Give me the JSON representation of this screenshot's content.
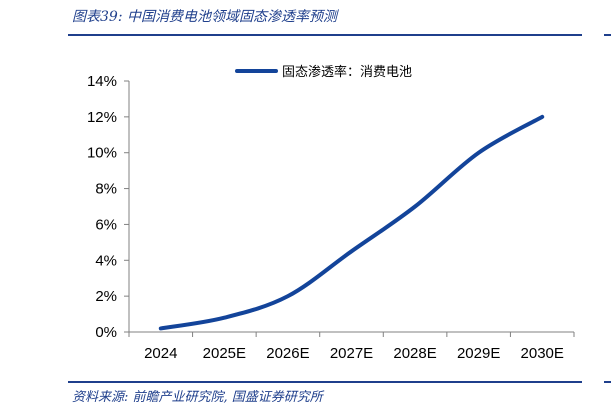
{
  "header": {
    "figure_title": "图表39:  中国消费电池领域固态渗透率预测"
  },
  "footer": {
    "source": "资料来源:  前瞻产业研究院,  国盛证券研究所"
  },
  "colors": {
    "accent": "#1f3f8c",
    "series_line": "#13449a",
    "axis": "#808080"
  },
  "chart_data": {
    "type": "line",
    "title": "",
    "xlabel": "",
    "ylabel": "",
    "categories": [
      "2024",
      "2025E",
      "2026E",
      "2027E",
      "2028E",
      "2029E",
      "2030E"
    ],
    "series": [
      {
        "name": "固态渗透率：消费电池",
        "values": [
          0.2,
          0.8,
          2.0,
          4.5,
          7.0,
          10.0,
          12.0
        ]
      }
    ],
    "y_ticks": [
      "0%",
      "2%",
      "4%",
      "6%",
      "8%",
      "10%",
      "12%",
      "14%"
    ],
    "ylim": [
      0,
      14
    ],
    "y_unit": "%",
    "grid": false,
    "legend_position": "top-center"
  }
}
